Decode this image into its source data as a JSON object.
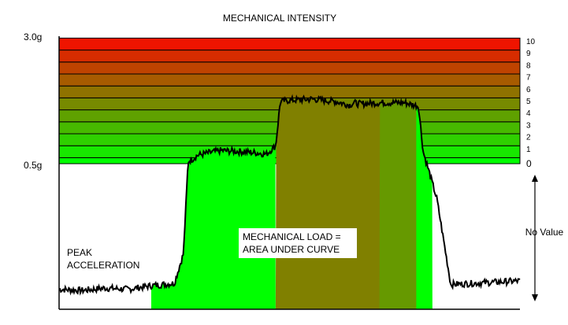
{
  "chart_data": {
    "type": "area",
    "title": "MECHANICAL INTENSITY",
    "y_tick_labels": [
      "3.0g",
      "0.5g"
    ],
    "intensity_levels": [
      "0",
      "1",
      "2",
      "3",
      "4",
      "5",
      "6",
      "7",
      "8",
      "9",
      "10"
    ],
    "band_colors": [
      "#00ff00",
      "#18e800",
      "#2fd000",
      "#47b900",
      "#5fa100",
      "#778a00",
      "#8f7200",
      "#a75b00",
      "#bf4300",
      "#d72c00",
      "#ef1400"
    ],
    "no_value_label": "No Value",
    "peak_label": [
      "PEAK",
      "ACCELERATION"
    ],
    "load_label": [
      "MECHANICAL LOAD =",
      "AREA UNDER CURVE"
    ],
    "fill_colors": {
      "low": "#00ff00",
      "high": "#808000",
      "mid": "#669900"
    },
    "curve_level_note": "curve in intensity-level units; negative = below 0.5g",
    "curve": {
      "x": [
        0,
        5,
        10,
        15,
        20,
        25,
        27,
        28,
        29,
        30,
        35,
        40,
        43,
        45,
        47,
        48,
        50,
        55,
        60,
        62,
        63,
        64,
        65,
        70,
        75,
        78,
        79,
        80,
        82,
        85,
        90,
        95,
        100
      ],
      "y": [
        -10.5,
        -10.6,
        -10.4,
        -10.5,
        -10.2,
        -10.0,
        -7.5,
        0.2,
        0.4,
        0.7,
        1.1,
        1.0,
        0.9,
        0.8,
        1.5,
        5.2,
        5.3,
        5.4,
        5.2,
        5.0,
        4.9,
        5.1,
        5.0,
        5.1,
        5.1,
        4.8,
        1.0,
        -0.3,
        -3.0,
        -10.1,
        -10.0,
        -9.9,
        -9.8
      ]
    },
    "fill_regions": [
      {
        "x": [
          20,
          47
        ],
        "color_key": "low"
      },
      {
        "x": [
          47,
          75
        ],
        "color_key": "high"
      },
      {
        "x": [
          75,
          81
        ],
        "color_key": "low"
      }
    ]
  }
}
